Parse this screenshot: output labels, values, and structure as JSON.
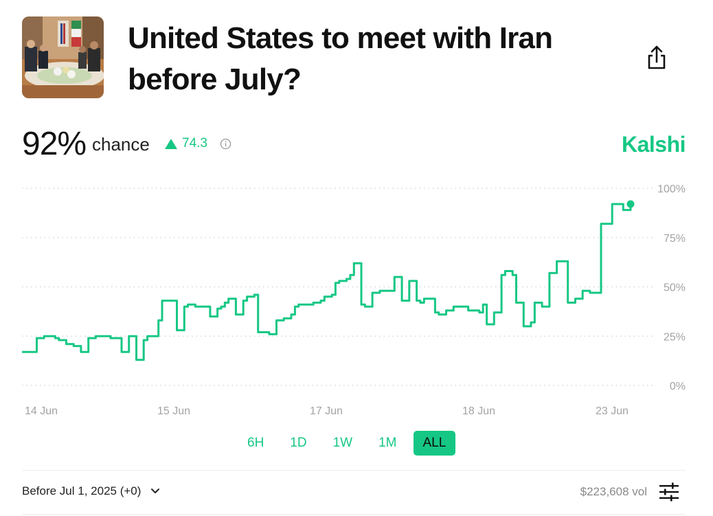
{
  "header": {
    "title_line1": "United States to meet with Iran",
    "title_line2": "before July?",
    "thumbnail_icon": "meeting-photo",
    "share_icon": "share-icon"
  },
  "stats": {
    "chance_value": "92%",
    "chance_label": "chance",
    "delta": "74.3",
    "brand": "Kalshi"
  },
  "colors": {
    "accent": "#16c784",
    "text": "#111111",
    "muted": "#999999"
  },
  "chart_data": {
    "type": "line",
    "series": [
      {
        "values": [
          17,
          17,
          17,
          17,
          24,
          24,
          25,
          25,
          25,
          24,
          23,
          23,
          21,
          21,
          20,
          20,
          17,
          17,
          24,
          24,
          25,
          25,
          25,
          25,
          24,
          24,
          24,
          17,
          17,
          25,
          25,
          13,
          13,
          23,
          25,
          25,
          25,
          33,
          43,
          43,
          43,
          43,
          28,
          28,
          40,
          41,
          41,
          40,
          40,
          40,
          40,
          35,
          35,
          39,
          40,
          42,
          44,
          44,
          36,
          36,
          43,
          45,
          45,
          46,
          27,
          27,
          27,
          26,
          26,
          33,
          33,
          34,
          34,
          36,
          40,
          41,
          41,
          41,
          41,
          42,
          42,
          43,
          45,
          45,
          46,
          52,
          53,
          53,
          54,
          56,
          62,
          62,
          41,
          40,
          40,
          47,
          47,
          48,
          48,
          48,
          48,
          55,
          55,
          43,
          43,
          53,
          53,
          43,
          42,
          44,
          44,
          44,
          37,
          36,
          36,
          38,
          38,
          40,
          40,
          40,
          40,
          38,
          38,
          38,
          37,
          41,
          31,
          31,
          37,
          37,
          56,
          58,
          58,
          56,
          42,
          42,
          30,
          30,
          32,
          42,
          42,
          40,
          40,
          57,
          57,
          63,
          63,
          63,
          42,
          42,
          44,
          44,
          48,
          48,
          47,
          47,
          47,
          82,
          82,
          82,
          92,
          92,
          92,
          89,
          89,
          92
        ]
      }
    ],
    "x_tick_labels": [
      "14 Jun",
      "15 Jun",
      "17 Jun",
      "18 Jun",
      "23 Jun"
    ],
    "y_tick_labels": [
      "100%",
      "75%",
      "50%",
      "25%",
      "0%"
    ],
    "ylim": [
      0,
      100
    ],
    "grid": true,
    "legend": "none"
  },
  "ranges": [
    "6H",
    "1D",
    "1W",
    "1M",
    "ALL"
  ],
  "active_range": "ALL",
  "footer": {
    "outcome": "Before Jul 1, 2025 (+0)",
    "volume": "$223,608 vol"
  }
}
